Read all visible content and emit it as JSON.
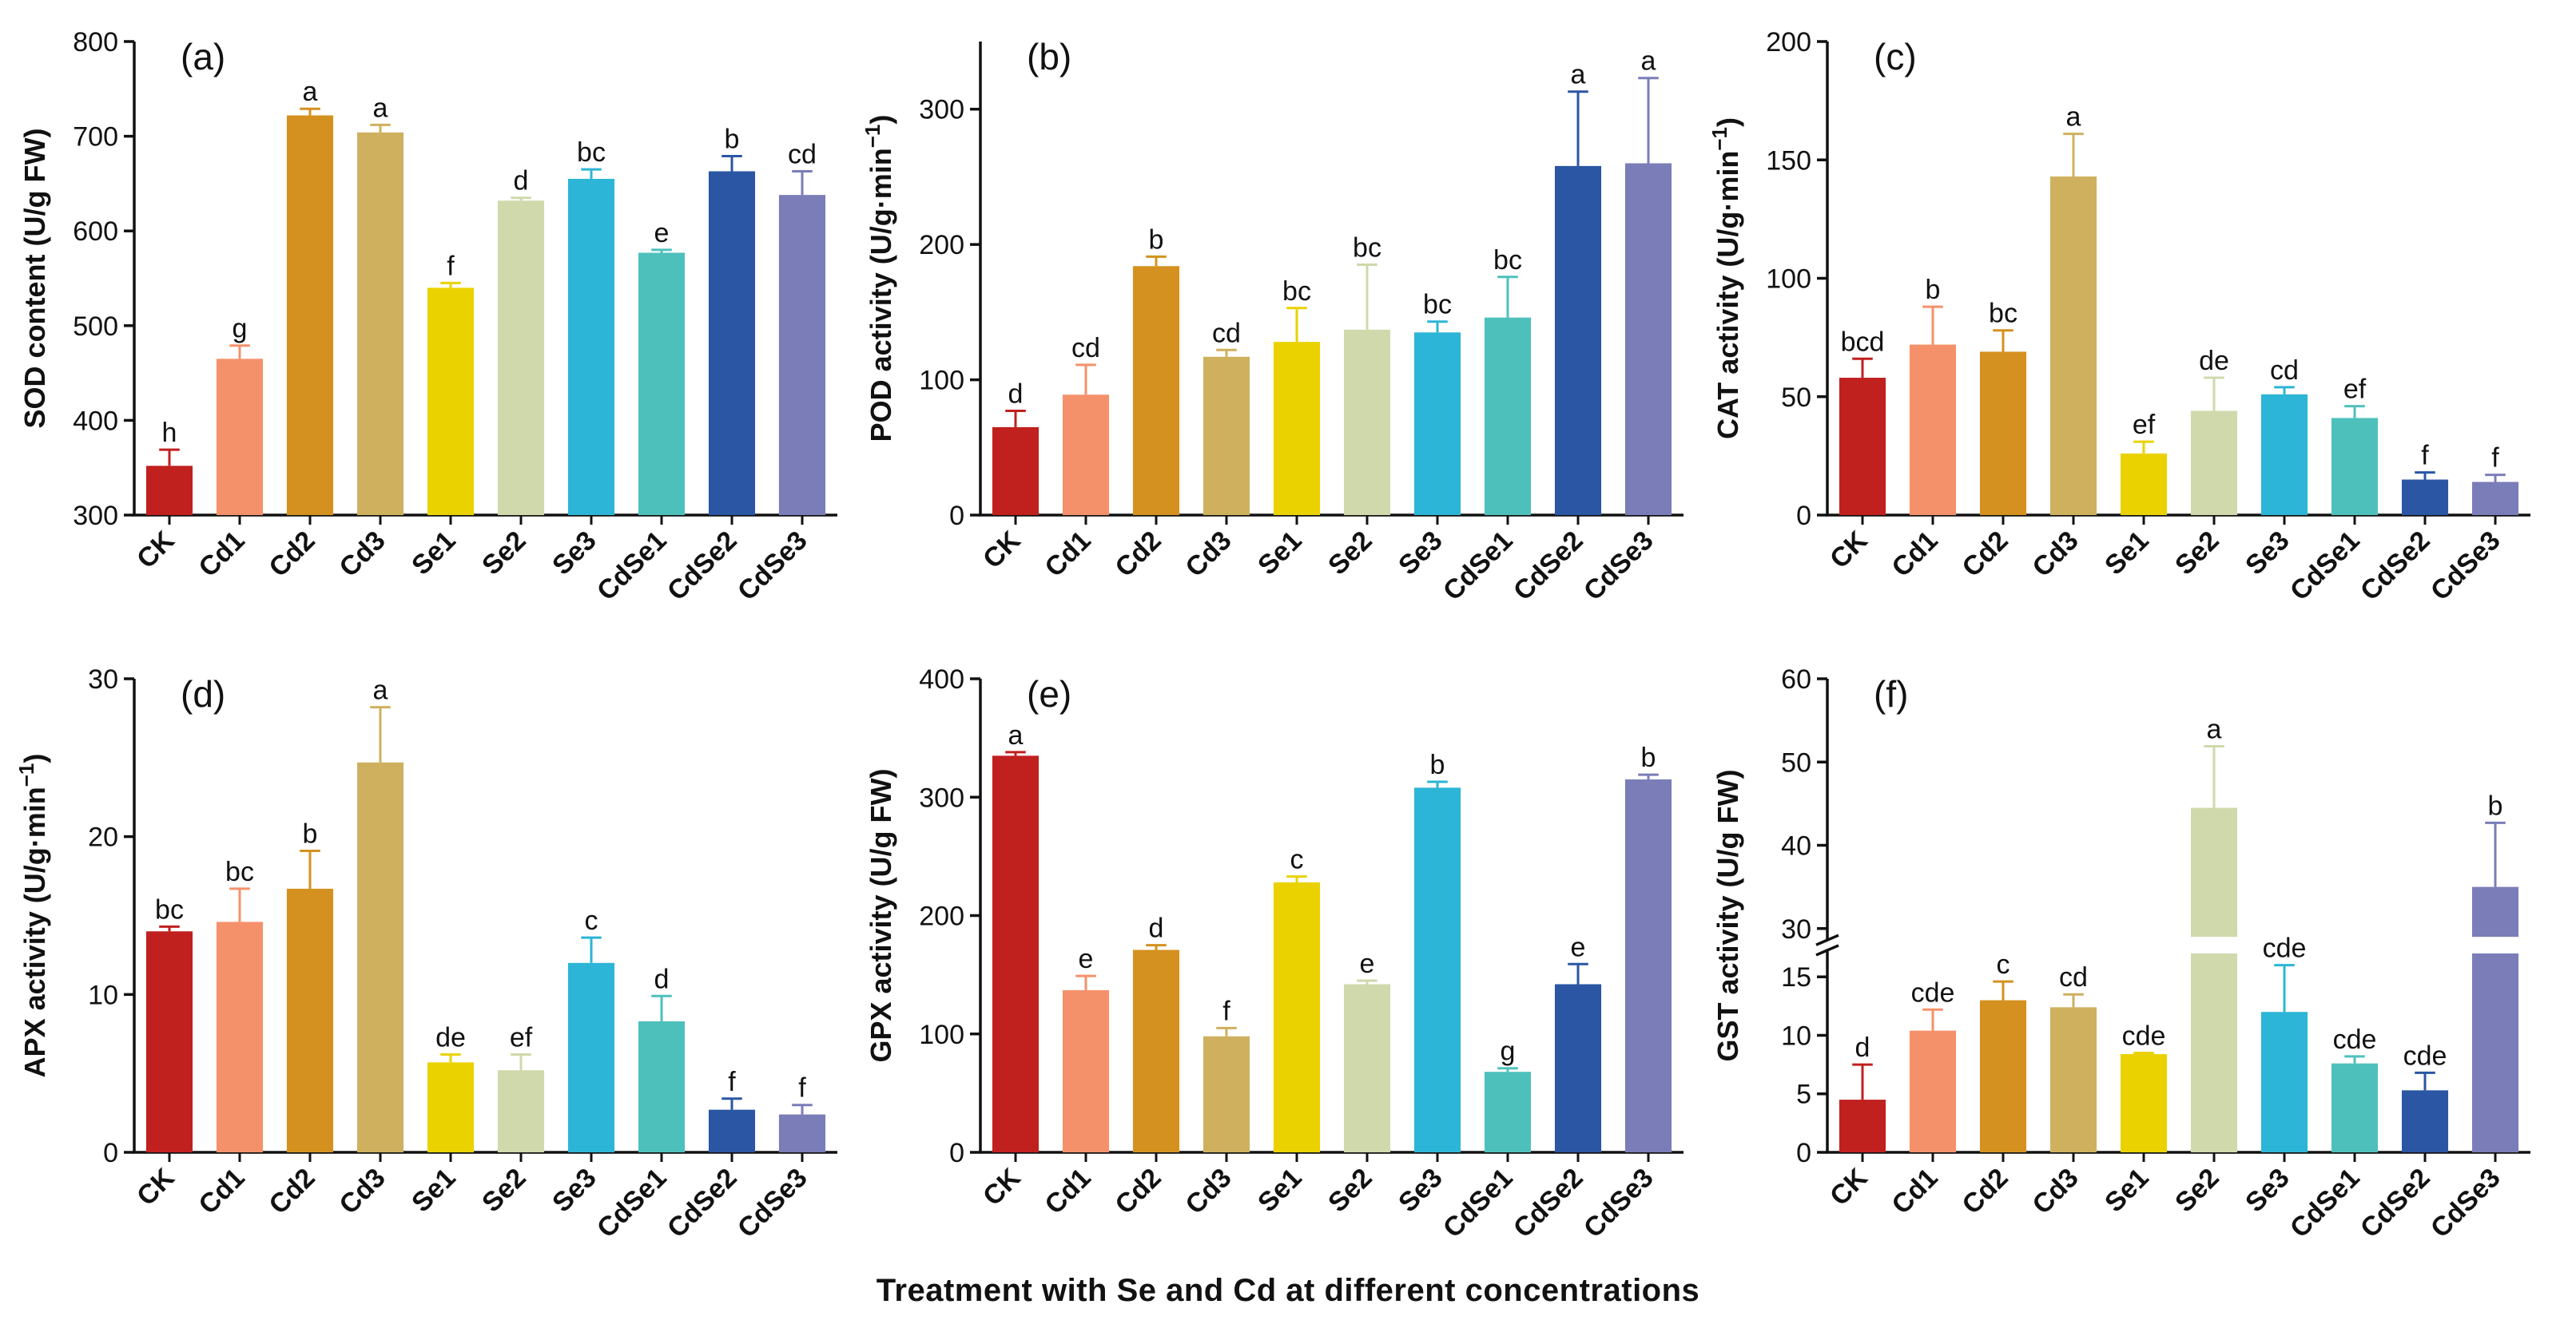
{
  "colors": [
    "#c0201e",
    "#f5916a",
    "#d4911f",
    "#cfb05e",
    "#ead200",
    "#cfd9ab",
    "#2cb5d6",
    "#4ec0bc",
    "#2a56a3",
    "#7a7db8"
  ],
  "footer": {
    "xlabel": "Treatment with Se and Cd at different concentrations"
  },
  "chart_data": [
    {
      "type": "bar",
      "panel": "(a)",
      "ylabel": "SOD content (U/g FW)",
      "categories": [
        "CK",
        "Cd1",
        "Cd2",
        "Cd3",
        "Se1",
        "Se2",
        "Se3",
        "CdSe1",
        "CdSe2",
        "CdSe3"
      ],
      "values": [
        352,
        465,
        722,
        704,
        540,
        632,
        655,
        577,
        663,
        638
      ],
      "errors": [
        17,
        14,
        7,
        8,
        5,
        3,
        10,
        3,
        16,
        25
      ],
      "letters": [
        "h",
        "g",
        "a",
        "a",
        "f",
        "d",
        "bc",
        "e",
        "b",
        "cd"
      ],
      "ylim": [
        300,
        800
      ],
      "ticks": [
        300,
        400,
        500,
        600,
        700,
        800
      ],
      "tick_labels": [
        "300",
        "400",
        "500",
        "600",
        "700",
        "800"
      ]
    },
    {
      "type": "bar",
      "panel": "(b)",
      "ylabel": "POD activity (U/g·min",
      "ylabel_sup": "−1",
      "ylabel_end": ")",
      "categories": [
        "CK",
        "Cd1",
        "Cd2",
        "Cd3",
        "Se1",
        "Se2",
        "Se3",
        "CdSe1",
        "CdSe2",
        "CdSe3"
      ],
      "values": [
        65,
        89,
        184,
        117,
        128,
        137,
        135,
        146,
        258,
        260
      ],
      "errors": [
        12,
        22,
        7,
        5,
        25,
        48,
        8,
        30,
        55,
        63
      ],
      "letters": [
        "d",
        "cd",
        "b",
        "cd",
        "bc",
        "bc",
        "bc",
        "bc",
        "a",
        "a"
      ],
      "ylim": [
        0,
        350
      ],
      "ticks": [
        0,
        100,
        200,
        300
      ],
      "tick_labels": [
        "0",
        "100",
        "200",
        "300"
      ]
    },
    {
      "type": "bar",
      "panel": "(c)",
      "ylabel": "CAT activity (U/g·min",
      "ylabel_sup": "−1",
      "ylabel_end": ")",
      "categories": [
        "CK",
        "Cd1",
        "Cd2",
        "Cd3",
        "Se1",
        "Se2",
        "Se3",
        "CdSe1",
        "CdSe2",
        "CdSe3"
      ],
      "values": [
        58,
        72,
        69,
        143,
        26,
        44,
        51,
        41,
        15,
        14
      ],
      "errors": [
        8,
        16,
        9,
        18,
        5,
        14,
        3,
        5,
        3,
        3
      ],
      "letters": [
        "bcd",
        "b",
        "bc",
        "a",
        "ef",
        "de",
        "cd",
        "ef",
        "f",
        "f"
      ],
      "ylim": [
        0,
        200
      ],
      "ticks": [
        0,
        50,
        100,
        150,
        200
      ],
      "tick_labels": [
        "0",
        "50",
        "100",
        "150",
        "200"
      ]
    },
    {
      "type": "bar",
      "panel": "(d)",
      "ylabel": "APX activity (U/g·min",
      "ylabel_sup": "−1",
      "ylabel_end": ")",
      "categories": [
        "CK",
        "Cd1",
        "Cd2",
        "Cd3",
        "Se1",
        "Se2",
        "Se3",
        "CdSe1",
        "CdSe2",
        "CdSe3"
      ],
      "values": [
        14.0,
        14.6,
        16.7,
        24.7,
        5.7,
        5.2,
        12.0,
        8.3,
        2.7,
        2.4
      ],
      "errors": [
        0.3,
        2.1,
        2.4,
        3.5,
        0.5,
        1.0,
        1.6,
        1.6,
        0.7,
        0.6
      ],
      "letters": [
        "bc",
        "bc",
        "b",
        "a",
        "de",
        "ef",
        "c",
        "d",
        "f",
        "f"
      ],
      "ylim": [
        0,
        30
      ],
      "ticks": [
        0,
        10,
        20,
        30
      ],
      "tick_labels": [
        "0",
        "10",
        "20",
        "30"
      ]
    },
    {
      "type": "bar",
      "panel": "(e)",
      "ylabel": "GPX activity (U/g FW)",
      "categories": [
        "CK",
        "Cd1",
        "Cd2",
        "Cd3",
        "Se1",
        "Se2",
        "Se3",
        "CdSe1",
        "CdSe2",
        "CdSe3"
      ],
      "values": [
        335,
        137,
        171,
        98,
        228,
        142,
        308,
        68,
        142,
        315
      ],
      "errors": [
        3,
        12,
        4,
        7,
        5,
        3,
        5,
        3,
        17,
        4
      ],
      "letters": [
        "a",
        "e",
        "d",
        "f",
        "c",
        "e",
        "b",
        "g",
        "e",
        "b"
      ],
      "ylim": [
        0,
        400
      ],
      "ticks": [
        0,
        100,
        200,
        300,
        400
      ],
      "tick_labels": [
        "0",
        "100",
        "200",
        "300",
        "400"
      ]
    },
    {
      "type": "bar",
      "panel": "(f)",
      "ylabel": "GST activity (U/g FW)",
      "axis_break": {
        "lower": [
          0,
          17
        ],
        "upper": [
          29,
          60
        ]
      },
      "categories": [
        "CK",
        "Cd1",
        "Cd2",
        "Cd3",
        "Se1",
        "Se2",
        "Se3",
        "CdSe1",
        "CdSe2",
        "CdSe3"
      ],
      "values": [
        4.5,
        10.4,
        13.0,
        12.4,
        8.4,
        44.5,
        12.0,
        7.6,
        5.3,
        35.0
      ],
      "errors": [
        3.0,
        1.8,
        1.6,
        1.1,
        0.1,
        7.4,
        4.0,
        0.6,
        1.5,
        7.7
      ],
      "letters": [
        "d",
        "cde",
        "c",
        "cd",
        "cde",
        "a",
        "cde",
        "cde",
        "cde",
        "b"
      ],
      "ylim": [
        0,
        60
      ],
      "ticks": [
        0,
        5,
        10,
        15,
        30,
        40,
        50,
        60
      ],
      "tick_labels": [
        "0",
        "5",
        "10",
        "15",
        "30",
        "40",
        "50",
        "60"
      ]
    }
  ]
}
